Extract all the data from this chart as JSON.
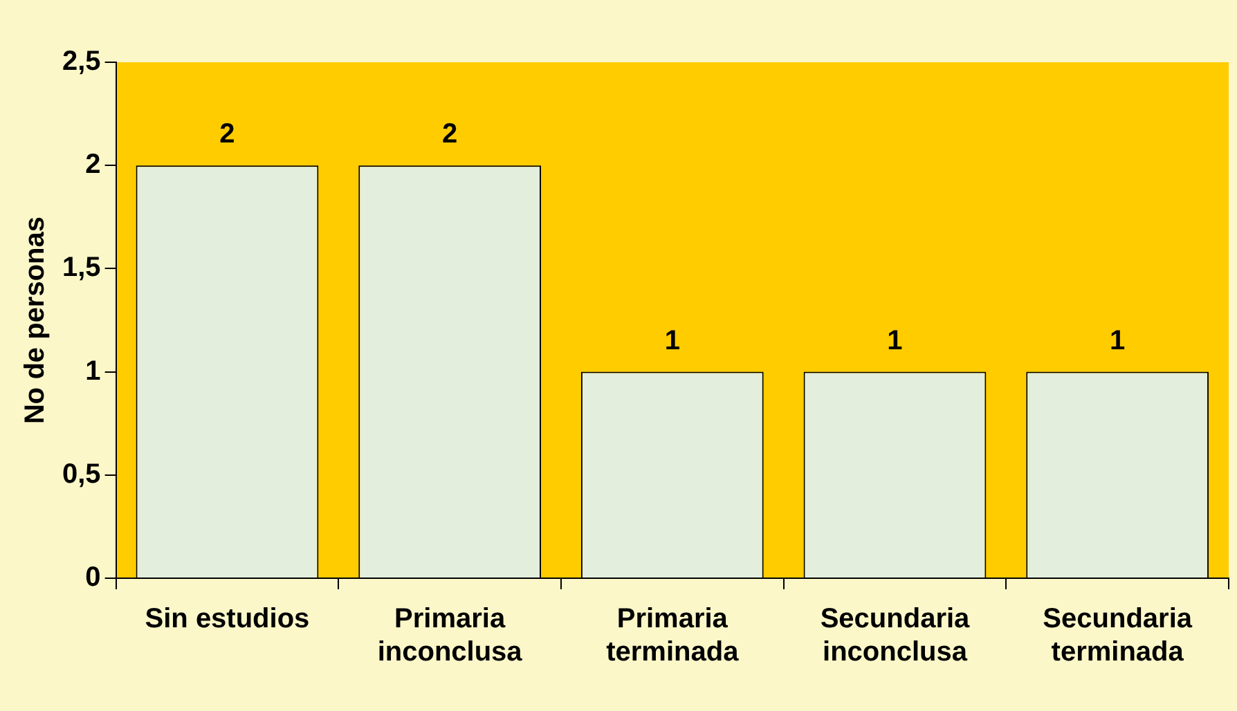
{
  "chart_data": {
    "type": "bar",
    "ylabel": "No de personas",
    "categories": [
      "Sin estudios",
      "Primaria\ninconclusa",
      "Primaria\nterminada",
      "Secundaria\ninconclusa",
      "Secundaria\nterminada"
    ],
    "values": [
      2,
      2,
      1,
      1,
      1
    ],
    "color": "#e3eedc",
    "ylim": [
      0,
      2.5
    ],
    "yticks": [
      0,
      {
        "value": 0.5,
        "label": "0,5"
      },
      1,
      {
        "value": 1.5,
        "label": "1,5"
      },
      2,
      {
        "value": 2.5,
        "label": "2,5"
      }
    ],
    "data_labels": true
  }
}
